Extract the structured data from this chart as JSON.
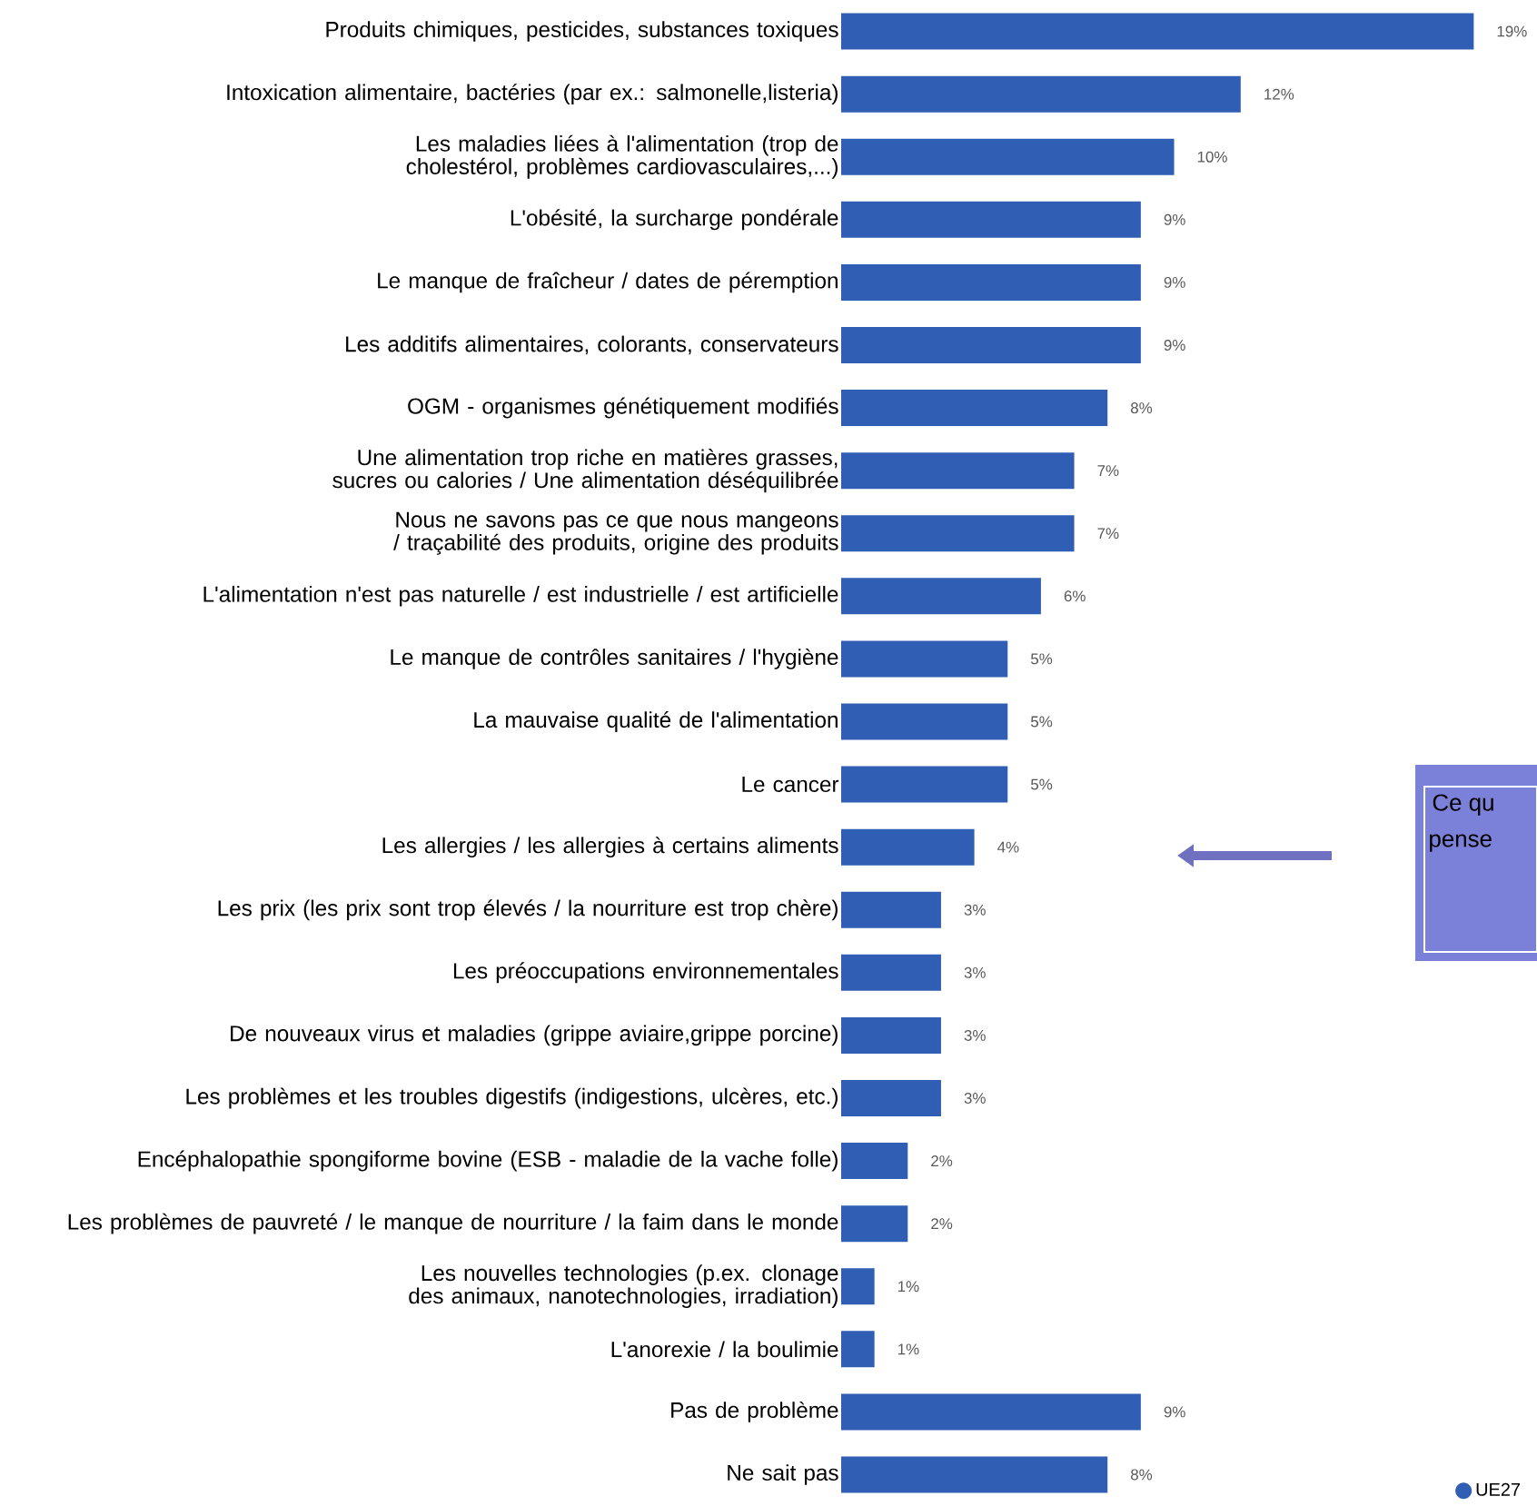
{
  "chart_data": {
    "type": "bar",
    "orientation": "horizontal",
    "categories": [
      "Produits chimiques, pesticides, substances toxiques",
      "Intoxication alimentaire, bactéries (par ex.: salmonelle,listeria)",
      "Les maladies liées à l'alimentation (trop de cholestérol, problèmes cardiovasculaires,...)",
      "L'obésité, la surcharge pondérale",
      "Le manque de fraîcheur / dates de péremption",
      "Les additifs alimentaires, colorants, conservateurs",
      "OGM - organismes génétiquement modifiés",
      "Une alimentation trop riche en matières grasses, sucres ou calories / Une alimentation déséquilibrée",
      "Nous ne savons pas ce que nous mangeons / traçabilité des produits, origine des produits",
      "L'alimentation n'est pas naturelle / est industrielle / est artificielle",
      "Le manque de contrôles sanitaires / l'hygiène",
      "La mauvaise qualité de l'alimentation",
      "Le cancer",
      "Les allergies / les allergies à certains aliments",
      "Les prix (les prix sont trop élevés / la nourriture est trop chère)",
      "Les préoccupations environnementales",
      "De nouveaux virus et maladies (grippe aviaire,grippe porcine)",
      "Les problèmes et les troubles digestifs (indigestions, ulcères, etc.)",
      "Encéphalopathie spongiforme bovine (ESB - maladie de la vache folle)",
      "Les problèmes de pauvreté / le manque de nourriture / la faim dans le monde",
      "Les nouvelles technologies (p.ex. clonage des animaux, nanotechnologies, irradiation)",
      "L'anorexie / la boulimie",
      "Pas de problème",
      "Ne sait pas"
    ],
    "series": [
      {
        "name": "UE27",
        "color": "#2f5eb4",
        "values": [
          19,
          12,
          10,
          9,
          9,
          9,
          8,
          7,
          7,
          6,
          5,
          5,
          5,
          4,
          3,
          3,
          3,
          3,
          2,
          2,
          1,
          1,
          9,
          8
        ],
        "value_labels": [
          "19%",
          "12%",
          "10%",
          "9%",
          "9%",
          "9%",
          "8%",
          "7%",
          "7%",
          "6%",
          "5%",
          "5%",
          "5%",
          "4%",
          "3%",
          "3%",
          "3%",
          "3%",
          "2%",
          "2%",
          "1%",
          "1%",
          "9%",
          "8%"
        ]
      }
    ],
    "legend": "bottom right",
    "annotations": [
      "Ce qu",
      "pense"
    ]
  }
}
